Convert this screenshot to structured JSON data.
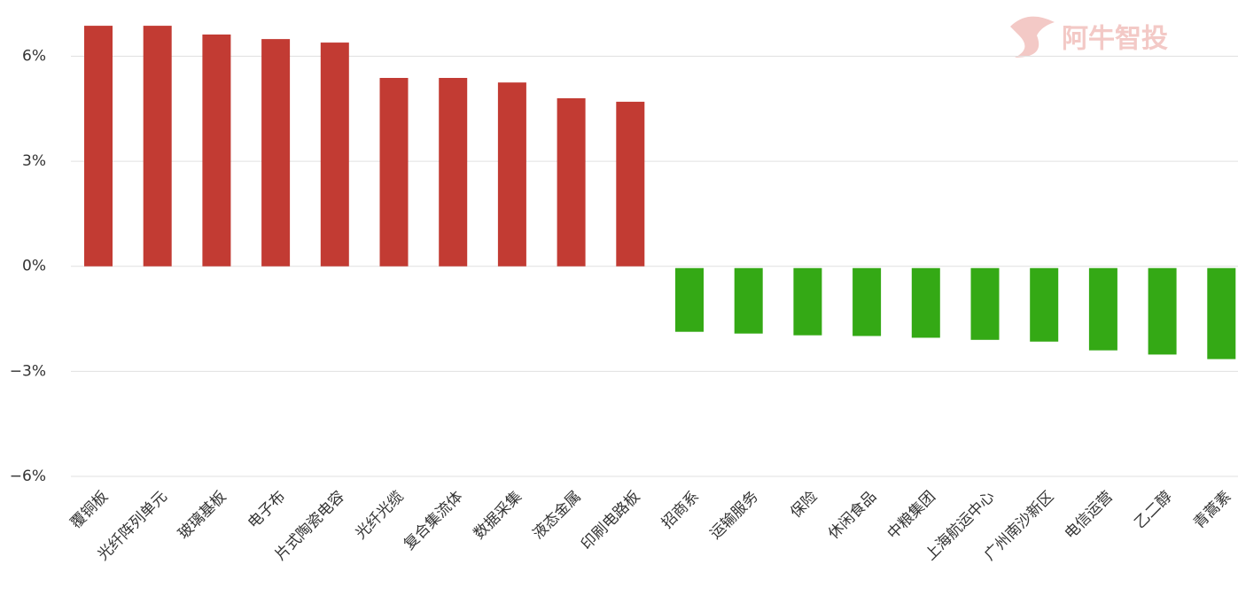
{
  "chart_data": {
    "type": "bar",
    "watermark": "阿牛智投",
    "categories": [
      "覆铜板",
      "光纤阵列单元",
      "玻璃基板",
      "电子布",
      "片式陶瓷电容",
      "光纤光缆",
      "复合集流体",
      "数据采集",
      "液态金属",
      "印刷电路板",
      "招商系",
      "运输服务",
      "保险",
      "休闲食品",
      "中粮集团",
      "上海航运中心",
      "广州南沙新区",
      "电信运营",
      "乙二醇",
      "青蒿素"
    ],
    "values": [
      6.87,
      6.87,
      6.62,
      6.49,
      6.39,
      5.38,
      5.38,
      5.25,
      4.8,
      4.7,
      -1.82,
      -1.87,
      -1.92,
      -1.94,
      -1.99,
      -2.05,
      -2.1,
      -2.35,
      -2.47,
      -2.6
    ],
    "positive_color": "#c23b33",
    "negative_color": "#34a915",
    "ylim": [
      -6,
      7.1
    ],
    "yticks": [
      {
        "value": 6,
        "label": "6%"
      },
      {
        "value": 3,
        "label": "3%"
      },
      {
        "value": 0,
        "label": "0%"
      },
      {
        "value": -3,
        "label": "−3%"
      },
      {
        "value": -6,
        "label": "−6%"
      }
    ],
    "grid": true
  }
}
